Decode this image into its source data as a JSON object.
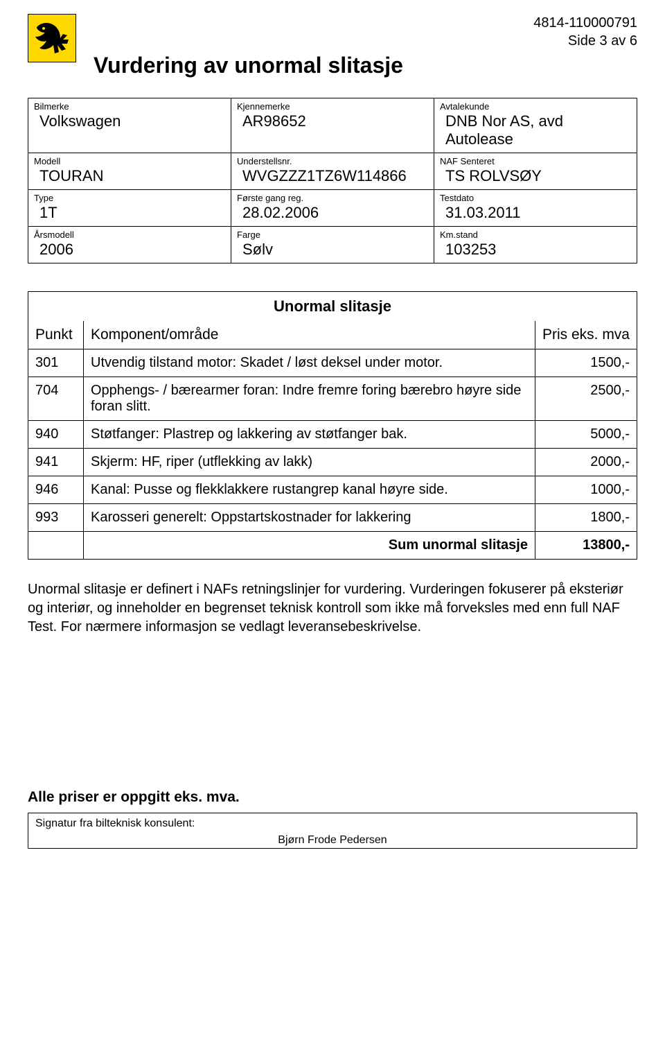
{
  "header": {
    "doc_ref": "4814-110000791",
    "page_of": "Side 3 av 6",
    "title": "Vurdering av unormal slitasje",
    "logo": {
      "bg": "#ffd800",
      "fg": "#000000"
    }
  },
  "info": {
    "rows": [
      [
        {
          "label": "Bilmerke",
          "value": "Volkswagen"
        },
        {
          "label": "Kjennemerke",
          "value": "AR98652"
        },
        {
          "label": "Avtalekunde",
          "value": "DNB Nor AS, avd Autolease"
        }
      ],
      [
        {
          "label": "Modell",
          "value": "TOURAN"
        },
        {
          "label": "Understellsnr.",
          "value": "WVGZZZ1TZ6W114866"
        },
        {
          "label": "NAF Senteret",
          "value": "TS ROLVSØY"
        }
      ],
      [
        {
          "label": "Type",
          "value": "1T"
        },
        {
          "label": "Første gang reg.",
          "value": "28.02.2006"
        },
        {
          "label": "Testdato",
          "value": "31.03.2011"
        }
      ],
      [
        {
          "label": "Årsmodell",
          "value": "2006"
        },
        {
          "label": "Farge",
          "value": "Sølv"
        },
        {
          "label": "Km.stand",
          "value": "103253"
        }
      ]
    ]
  },
  "table": {
    "caption": "Unormal slitasje",
    "headers": {
      "punkt": "Punkt",
      "komponent": "Komponent/område",
      "pris": "Pris eks. mva"
    },
    "rows": [
      {
        "punkt": "301",
        "komponent": "Utvendig tilstand motor: Skadet / løst deksel under motor.",
        "pris": "1500,-"
      },
      {
        "punkt": "704",
        "komponent": "Opphengs- / bærearmer foran: Indre fremre foring bærebro høyre side foran slitt.",
        "pris": "2500,-"
      },
      {
        "punkt": "940",
        "komponent": "Støtfanger: Plastrep og lakkering av støtfanger bak.",
        "pris": "5000,-"
      },
      {
        "punkt": "941",
        "komponent": "Skjerm: HF, riper (utflekking av lakk)",
        "pris": "2000,-"
      },
      {
        "punkt": "946",
        "komponent": "Kanal: Pusse og flekklakkere rustangrep kanal høyre side.",
        "pris": "1000,-"
      },
      {
        "punkt": "993",
        "komponent": "Karosseri generelt: Oppstartskostnader for lakkering",
        "pris": "1800,-"
      }
    ],
    "sum_label": "Sum unormal slitasje",
    "sum_value": "13800,-"
  },
  "body_text": "Unormal slitasje er definert i NAFs retningslinjer for vurdering. Vurderingen fokuserer på eksteriør og interiør, og inneholder en begrenset teknisk kontroll som ikke må forveksles med enn full NAF Test. For nærmere informasjon se vedlagt leveransebeskrivelse.",
  "footer": {
    "note": "Alle priser er oppgitt eks. mva.",
    "sig_label": "Signatur fra bilteknisk konsulent:",
    "sig_name": "Bjørn Frode Pedersen"
  }
}
